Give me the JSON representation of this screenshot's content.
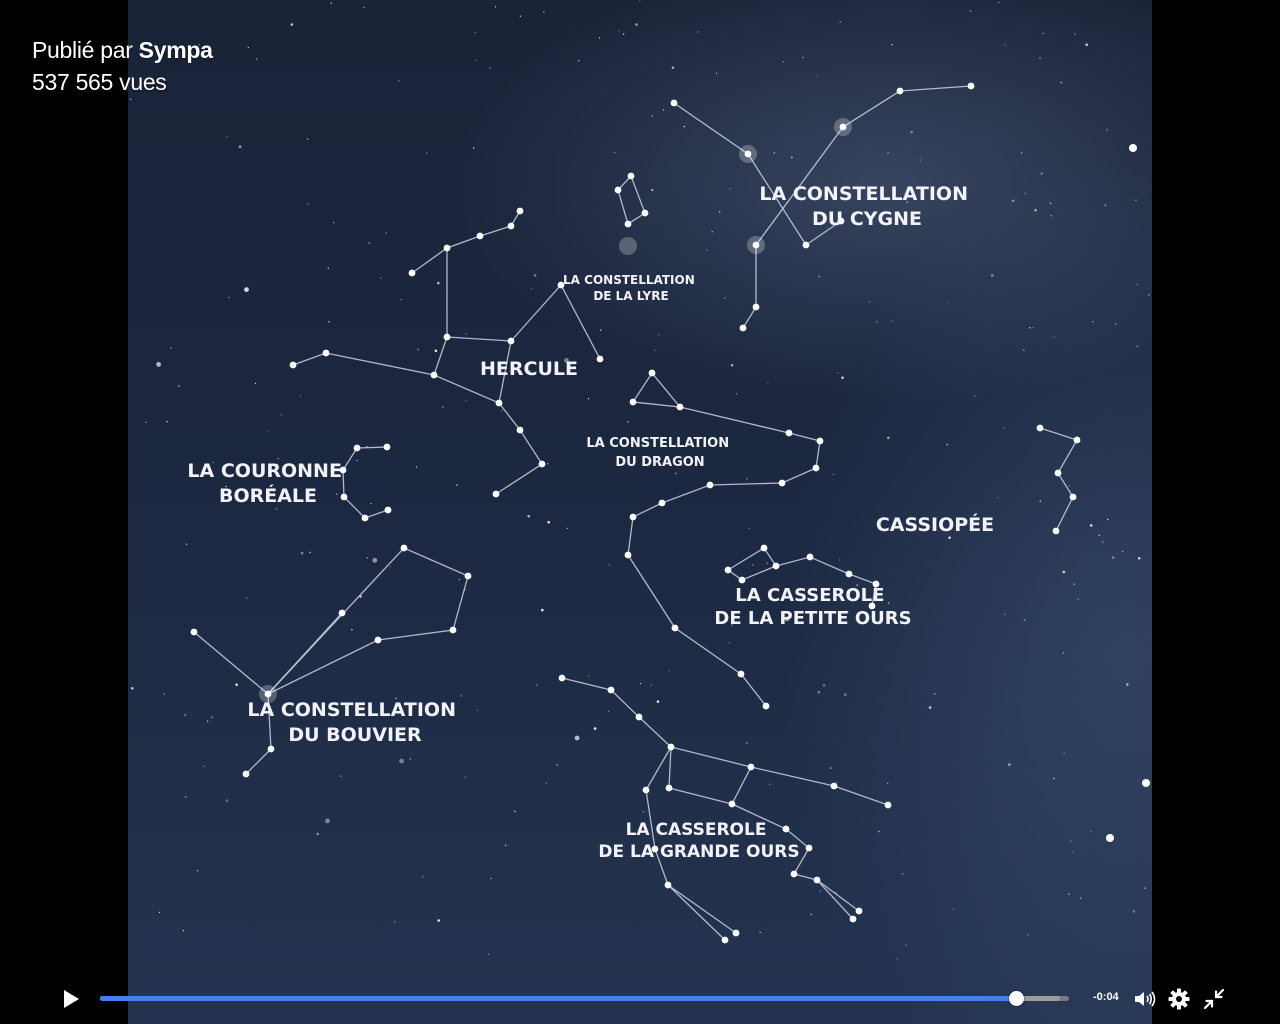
{
  "post": {
    "published_prefix": "Publié par",
    "publisher": "Sympa",
    "views": "537 565 vues"
  },
  "labels": {
    "cygne": [
      "LA CONSTELLATION",
      "DU CYGNE"
    ],
    "lyre": [
      "LA CONSTELLATION",
      "DE LA LYRE"
    ],
    "hercule": [
      "HERCULE"
    ],
    "dragon": [
      "LA CONSTELLATION",
      "DU DRAGON"
    ],
    "couronne": [
      "LA COURONNE",
      "BORÉALE"
    ],
    "cassiopee": [
      "CASSIOPÉE"
    ],
    "petite_ourse": [
      "LA CASSEROLE",
      "DE LA PETITE OURS"
    ],
    "bouvier": [
      "LA CONSTELLATION",
      "DU BOUVIER"
    ],
    "grande_ourse": [
      "LA CASSEROLE",
      "DE LA GRANDE OURS"
    ]
  },
  "player": {
    "time_remaining": "-0:04",
    "progress": 0.945,
    "accent_color": "#4a7eea",
    "icons": [
      "play-icon",
      "volume-icon",
      "settings-gear-icon",
      "exit-fullscreen-icon"
    ]
  }
}
